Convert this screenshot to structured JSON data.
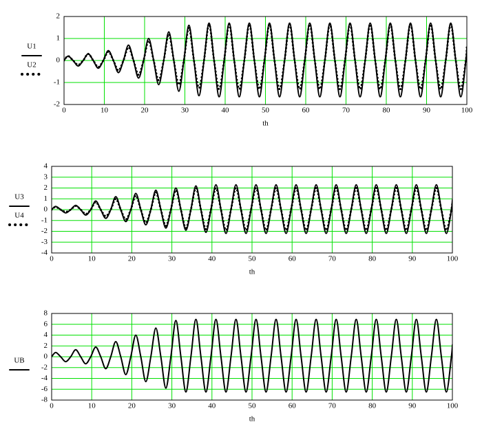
{
  "chart_data": [
    {
      "type": "line",
      "x_label": "th",
      "x": [
        0,
        1,
        2.25,
        3.5,
        4.75,
        6,
        7.25,
        8.5,
        9.75,
        11,
        12.25,
        13.5,
        14.75,
        16,
        17.25,
        18.5,
        19.75,
        21,
        22.25,
        23.5,
        24.75,
        26,
        27.25,
        28.5,
        29.75,
        31,
        32.25,
        33.5,
        34.75,
        36,
        37.25,
        38.5,
        39.75,
        41,
        42.25,
        43.5,
        44.75,
        46,
        47.25,
        48.5,
        49.75,
        51,
        52.25,
        53.5,
        54.75,
        56,
        57.25,
        58.5,
        59.75,
        61,
        62.25,
        63.5,
        64.75,
        66,
        67.25,
        68.5,
        69.75,
        71,
        72.25,
        73.5,
        74.75,
        76,
        77.25,
        78.5,
        79.75,
        81,
        82.25,
        83.5,
        84.75,
        86,
        87.25,
        88.5,
        89.75,
        91,
        92.25,
        93.5,
        94.75,
        96,
        97.25,
        98.5,
        99.75,
        100
      ],
      "series": [
        {
          "name": "U1",
          "color": "#000000",
          "style": "solid",
          "values": [
            0,
            0.2,
            0,
            -0.25,
            0,
            0.3,
            0,
            -0.35,
            0,
            0.45,
            0,
            -0.55,
            0,
            0.7,
            0,
            -0.8,
            0,
            1.0,
            0,
            -1.1,
            0,
            1.3,
            0,
            -1.4,
            0,
            1.6,
            0,
            -1.6,
            0,
            1.7,
            0,
            -1.65,
            0,
            1.7,
            0,
            -1.65,
            0,
            1.7,
            0,
            -1.65,
            0,
            1.7,
            0,
            -1.65,
            0,
            1.7,
            0,
            -1.65,
            0,
            1.7,
            0,
            -1.65,
            0,
            1.7,
            0,
            -1.65,
            0,
            1.7,
            0,
            -1.65,
            0,
            1.7,
            0,
            -1.65,
            0,
            1.7,
            0,
            -1.65,
            0,
            1.7,
            0,
            -1.65,
            0,
            1.7,
            0,
            -1.65,
            0,
            1.7,
            0,
            -1.65,
            0,
            0.55
          ]
        },
        {
          "name": "U2",
          "color": "#000000",
          "style": "dotted",
          "values": [
            0,
            0.2,
            0,
            -0.2,
            0,
            0.3,
            0,
            -0.3,
            0,
            0.4,
            0,
            -0.45,
            0,
            0.6,
            0,
            -0.65,
            0,
            0.9,
            0,
            -0.9,
            0,
            1.2,
            0,
            -1.1,
            0,
            1.5,
            0,
            -1.25,
            0,
            1.65,
            0,
            -1.3,
            0,
            1.65,
            0,
            -1.3,
            0,
            1.65,
            0,
            -1.3,
            0,
            1.65,
            0,
            -1.3,
            0,
            1.65,
            0,
            -1.3,
            0,
            1.65,
            0,
            -1.3,
            0,
            1.65,
            0,
            -1.3,
            0,
            1.65,
            0,
            -1.3,
            0,
            1.65,
            0,
            -1.3,
            0,
            1.65,
            0,
            -1.3,
            0,
            1.65,
            0,
            -1.3,
            0,
            1.65,
            0,
            -1.3,
            0,
            1.65,
            0,
            -1.3,
            0,
            0.6
          ]
        }
      ],
      "xlim": [
        0,
        100
      ],
      "xticks": [
        0,
        10,
        20,
        30,
        40,
        50,
        60,
        70,
        80,
        90,
        100
      ],
      "ylim": [
        -2,
        2
      ],
      "yticks": [
        2,
        1,
        0,
        -1,
        -2
      ],
      "grid": true,
      "grid_color": "#00e000"
    },
    {
      "type": "line",
      "x_label": "th",
      "x": [
        0,
        1,
        2.25,
        3.5,
        4.75,
        6,
        7.25,
        8.5,
        9.75,
        11,
        12.25,
        13.5,
        14.75,
        16,
        17.25,
        18.5,
        19.75,
        21,
        22.25,
        23.5,
        24.75,
        26,
        27.25,
        28.5,
        29.75,
        31,
        32.25,
        33.5,
        34.75,
        36,
        37.25,
        38.5,
        39.75,
        41,
        42.25,
        43.5,
        44.75,
        46,
        47.25,
        48.5,
        49.75,
        51,
        52.25,
        53.5,
        54.75,
        56,
        57.25,
        58.5,
        59.75,
        61,
        62.25,
        63.5,
        64.75,
        66,
        67.25,
        68.5,
        69.75,
        71,
        72.25,
        73.5,
        74.75,
        76,
        77.25,
        78.5,
        79.75,
        81,
        82.25,
        83.5,
        84.75,
        86,
        87.25,
        88.5,
        89.75,
        91,
        92.25,
        93.5,
        94.75,
        96,
        97.25,
        98.5,
        99.75,
        100
      ],
      "series": [
        {
          "name": "U3",
          "color": "#000000",
          "style": "solid",
          "values": [
            0,
            0.3,
            0,
            -0.3,
            0,
            0.4,
            0,
            -0.5,
            0,
            0.8,
            0,
            -0.8,
            0,
            1.2,
            0,
            -1.1,
            0,
            1.5,
            0,
            -1.4,
            0,
            1.8,
            0,
            -1.7,
            0,
            2.0,
            0,
            -1.9,
            0,
            2.2,
            0,
            -2.1,
            0,
            2.3,
            0,
            -2.2,
            0,
            2.3,
            0,
            -2.2,
            0,
            2.3,
            0,
            -2.2,
            0,
            2.3,
            0,
            -2.2,
            0,
            2.3,
            0,
            -2.2,
            0,
            2.3,
            0,
            -2.2,
            0,
            2.3,
            0,
            -2.2,
            0,
            2.3,
            0,
            -2.2,
            0,
            2.3,
            0,
            -2.2,
            0,
            2.3,
            0,
            -2.2,
            0,
            2.3,
            0,
            -2.2,
            0,
            2.3,
            0,
            -2.2,
            0,
            0.9
          ]
        },
        {
          "name": "U4",
          "color": "#000000",
          "style": "dotted",
          "values": [
            0,
            0.25,
            0,
            -0.2,
            0,
            0.35,
            0,
            -0.4,
            0,
            0.7,
            0,
            -0.6,
            0,
            1.0,
            0,
            -0.9,
            0,
            1.3,
            0,
            -1.2,
            0,
            1.6,
            0,
            -1.5,
            0,
            1.8,
            0,
            -1.7,
            0,
            2.0,
            0,
            -1.8,
            0,
            2.0,
            0,
            -1.9,
            0,
            2.0,
            0,
            -1.9,
            0,
            2.0,
            0,
            -1.9,
            0,
            2.0,
            0,
            -1.9,
            0,
            2.0,
            0,
            -1.9,
            0,
            2.0,
            0,
            -1.9,
            0,
            2.0,
            0,
            -1.9,
            0,
            2.0,
            0,
            -1.9,
            0,
            2.0,
            0,
            -1.9,
            0,
            2.0,
            0,
            -1.9,
            0,
            2.0,
            0,
            -1.9,
            0,
            2.0,
            0,
            -1.9,
            0,
            0.7
          ]
        }
      ],
      "xlim": [
        0,
        100
      ],
      "xticks": [
        0,
        10,
        20,
        30,
        40,
        50,
        60,
        70,
        80,
        90,
        100
      ],
      "ylim": [
        -4,
        4
      ],
      "yticks": [
        4,
        3,
        2,
        1,
        0,
        -1,
        -2,
        -3,
        -4
      ],
      "grid": true,
      "grid_color": "#00e000"
    },
    {
      "type": "line",
      "x_label": "th",
      "x": [
        0,
        1,
        2.25,
        3.5,
        4.75,
        6,
        7.25,
        8.5,
        9.75,
        11,
        12.25,
        13.5,
        14.75,
        16,
        17.25,
        18.5,
        19.75,
        21,
        22.25,
        23.5,
        24.75,
        26,
        27.25,
        28.5,
        29.75,
        31,
        32.25,
        33.5,
        34.75,
        36,
        37.25,
        38.5,
        39.75,
        41,
        42.25,
        43.5,
        44.75,
        46,
        47.25,
        48.5,
        49.75,
        51,
        52.25,
        53.5,
        54.75,
        56,
        57.25,
        58.5,
        59.75,
        61,
        62.25,
        63.5,
        64.75,
        66,
        67.25,
        68.5,
        69.75,
        71,
        72.25,
        73.5,
        74.75,
        76,
        77.25,
        78.5,
        79.75,
        81,
        82.25,
        83.5,
        84.75,
        86,
        87.25,
        88.5,
        89.75,
        91,
        92.25,
        93.5,
        94.75,
        96,
        97.25,
        98.5,
        99.75,
        100
      ],
      "series": [
        {
          "name": "UB",
          "color": "#000000",
          "style": "solid",
          "values": [
            0,
            0.8,
            0,
            -0.9,
            0,
            1.3,
            0,
            -1.3,
            0,
            1.8,
            0,
            -2.2,
            0,
            2.8,
            0,
            -3.3,
            0,
            4.0,
            0,
            -4.6,
            0,
            5.3,
            0,
            -5.8,
            0,
            6.7,
            0,
            -6.5,
            0,
            6.9,
            0,
            -6.5,
            0,
            6.9,
            0,
            -6.5,
            0,
            6.9,
            0,
            -6.5,
            0,
            6.9,
            0,
            -6.5,
            0,
            6.9,
            0,
            -6.5,
            0,
            6.9,
            0,
            -6.5,
            0,
            6.9,
            0,
            -6.5,
            0,
            6.9,
            0,
            -6.5,
            0,
            6.9,
            0,
            -6.5,
            0,
            6.9,
            0,
            -6.5,
            0,
            6.9,
            0,
            -6.5,
            0,
            6.9,
            0,
            -6.5,
            0,
            6.9,
            0,
            -6.5,
            0,
            2.2
          ]
        }
      ],
      "xlim": [
        0,
        100
      ],
      "xticks": [
        0,
        10,
        20,
        30,
        40,
        50,
        60,
        70,
        80,
        90,
        100
      ],
      "ylim": [
        -8,
        8
      ],
      "yticks": [
        8,
        6,
        4,
        2,
        0,
        -2,
        -4,
        -6,
        -8
      ],
      "grid": true,
      "grid_color": "#00e000"
    }
  ]
}
